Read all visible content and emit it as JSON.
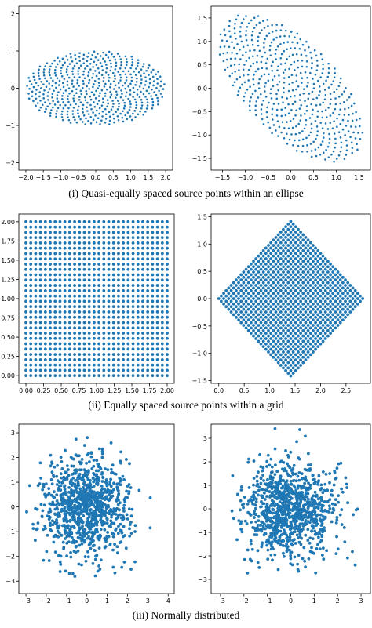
{
  "captions": [
    "(i) Quasi-equally spaced source points within an ellipse",
    "(ii) Equally spaced source points within a grid",
    "(iii) Normally distributed"
  ],
  "colors": {
    "marker": "#1f77b4",
    "axis": "#000000"
  },
  "chart_data": [
    {
      "type": "scatter",
      "id": "ellipse",
      "title": "",
      "xlabel": "",
      "ylabel": "",
      "xlim": [
        -2.2,
        2.2
      ],
      "ylim": [
        -2.2,
        2.2
      ],
      "xticks": [
        -2.0,
        -1.5,
        -1.0,
        -0.5,
        0.0,
        0.5,
        1.0,
        1.5,
        2.0
      ],
      "yticks": [
        -2,
        -1,
        0,
        1,
        2
      ],
      "xticklabels": [
        "−2.0",
        "−1.5",
        "−1.0",
        "−0.5",
        "0.0",
        "0.5",
        "1.0",
        "1.5",
        "2.0"
      ],
      "yticklabels": [
        "−2",
        "−1",
        "0",
        "1",
        "2"
      ],
      "generator": {
        "kind": "sunflower-ellipse",
        "n": 500,
        "a": 2.0,
        "b": 1.0,
        "angle_deg": 0
      },
      "grid": false
    },
    {
      "type": "scatter",
      "id": "ellipse-rotated",
      "title": "",
      "xlabel": "",
      "ylabel": "",
      "xlim": [
        -1.75,
        1.75
      ],
      "ylim": [
        -1.75,
        1.75
      ],
      "xticks": [
        -1.5,
        -1.0,
        -0.5,
        0.0,
        0.5,
        1.0,
        1.5
      ],
      "yticks": [
        -1.5,
        -1.0,
        -0.5,
        0.0,
        0.5,
        1.0,
        1.5
      ],
      "xticklabels": [
        "−1.5",
        "−1.0",
        "−0.5",
        "0.0",
        "0.5",
        "1.0",
        "1.5"
      ],
      "yticklabels": [
        "−1.5",
        "−1.0",
        "−0.5",
        "0.0",
        "0.5",
        "1.0",
        "1.5"
      ],
      "generator": {
        "kind": "sunflower-ellipse",
        "n": 500,
        "a": 2.0,
        "b": 1.0,
        "angle_deg": -45
      },
      "grid": false
    },
    {
      "type": "scatter",
      "id": "grid",
      "title": "",
      "xlabel": "",
      "ylabel": "",
      "xlim": [
        -0.1,
        2.1
      ],
      "ylim": [
        -0.1,
        2.1
      ],
      "xticks": [
        0.0,
        0.25,
        0.5,
        0.75,
        1.0,
        1.25,
        1.5,
        1.75,
        2.0
      ],
      "yticks": [
        0.0,
        0.25,
        0.5,
        0.75,
        1.0,
        1.25,
        1.5,
        1.75,
        2.0
      ],
      "xticklabels": [
        "0.00",
        "0.25",
        "0.50",
        "0.75",
        "1.00",
        "1.25",
        "1.50",
        "1.75",
        "2.00"
      ],
      "yticklabels": [
        "0.00",
        "0.25",
        "0.50",
        "0.75",
        "1.00",
        "1.25",
        "1.50",
        "1.75",
        "2.00"
      ],
      "generator": {
        "kind": "grid",
        "n_per_side": 30,
        "min": 0,
        "max": 2,
        "angle_deg": 0
      },
      "grid": false
    },
    {
      "type": "scatter",
      "id": "grid-rotated",
      "title": "",
      "xlabel": "",
      "ylabel": "",
      "xlim": [
        -0.15,
        2.98
      ],
      "ylim": [
        -1.55,
        1.55
      ],
      "xticks": [
        0.0,
        0.5,
        1.0,
        1.5,
        2.0,
        2.5
      ],
      "yticks": [
        -1.5,
        -1.0,
        -0.5,
        0.0,
        0.5,
        1.0,
        1.5
      ],
      "xticklabels": [
        "0.0",
        "0.5",
        "1.0",
        "1.5",
        "2.0",
        "2.5"
      ],
      "yticklabels": [
        "−1.5",
        "−1.0",
        "−0.5",
        "0.0",
        "0.5",
        "1.0",
        "1.5"
      ],
      "generator": {
        "kind": "grid",
        "n_per_side": 30,
        "min": 0,
        "max": 2,
        "angle_deg": -45
      },
      "grid": false
    },
    {
      "type": "scatter",
      "id": "normal",
      "title": "",
      "xlabel": "",
      "ylabel": "",
      "xlim": [
        -3.35,
        4.3
      ],
      "ylim": [
        -3.5,
        3.35
      ],
      "xticks": [
        -3,
        -2,
        -1,
        0,
        1,
        2,
        3,
        4
      ],
      "yticks": [
        -3,
        -2,
        -1,
        0,
        1,
        2,
        3
      ],
      "xticklabels": [
        "−3",
        "−2",
        "−1",
        "0",
        "1",
        "2",
        "3",
        "4"
      ],
      "yticklabels": [
        "−3",
        "−2",
        "−1",
        "0",
        "1",
        "2",
        "3"
      ],
      "generator": {
        "kind": "normal",
        "n": 1000,
        "mean": 0,
        "sd": 1,
        "angle_deg": 0
      },
      "grid": false
    },
    {
      "type": "scatter",
      "id": "normal-rotated",
      "title": "",
      "xlabel": "",
      "ylabel": "",
      "xlim": [
        -3.4,
        3.4
      ],
      "ylim": [
        -3.6,
        3.6
      ],
      "xticks": [
        -3,
        -2,
        -1,
        0,
        1,
        2,
        3
      ],
      "yticks": [
        -3,
        -2,
        -1,
        0,
        1,
        2,
        3
      ],
      "xticklabels": [
        "−3",
        "−2",
        "−1",
        "0",
        "1",
        "2",
        "3"
      ],
      "yticklabels": [
        "−3",
        "−2",
        "−1",
        "0",
        "1",
        "2",
        "3"
      ],
      "generator": {
        "kind": "normal",
        "n": 1000,
        "mean": 0,
        "sd": 1,
        "angle_deg": -45
      },
      "grid": false
    }
  ]
}
